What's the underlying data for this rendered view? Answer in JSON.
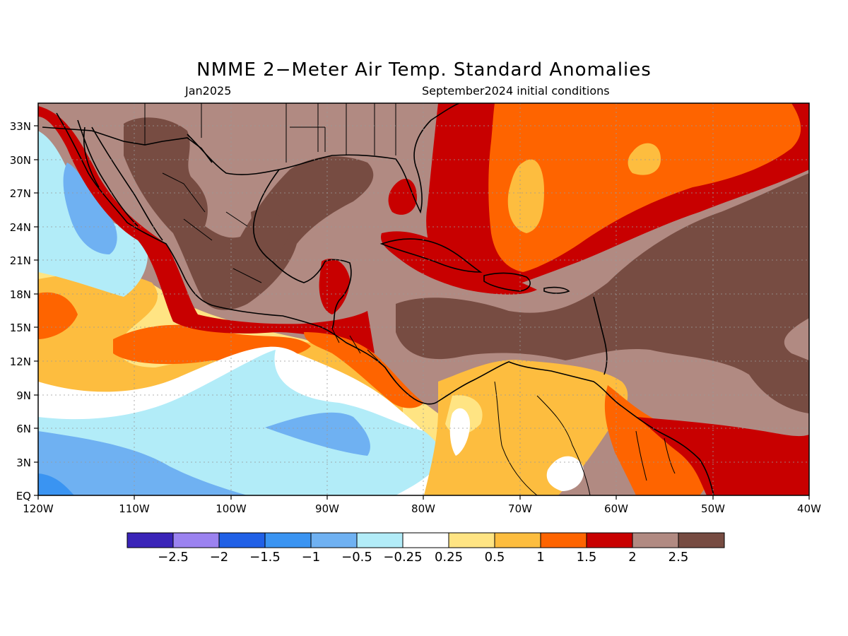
{
  "title": "NMME 2−Meter Air Temp. Standard Anomalies",
  "valid_month": "Jan2025",
  "initial_conditions": "September2024 initial conditions",
  "colors": {
    "lt_m2_5": "#3a24b8",
    "m2_5_m2": "#9b82f0",
    "m2_m1_5": "#2060e6",
    "m1_5_m1": "#3a94f2",
    "m1_m0_5": "#6fb1f2",
    "m0_5_m0_25": "#b2ecf8",
    "m0_25_0_25": "#ffffff",
    "p0_25_0_5": "#ffe483",
    "p0_5_1": "#fdbd3f",
    "p1_1_5": "#fe6400",
    "p1_5_2": "#c80000",
    "p2_2_5": "#b18a82",
    "gt_2_5": "#774c42"
  },
  "chart_data": {
    "type": "map",
    "variable": "2-Meter Air Temperature Standard Anomaly",
    "lon_range": [
      -120,
      -40
    ],
    "lat_range": [
      0,
      35
    ],
    "lon_ticks": [
      "120W",
      "110W",
      "100W",
      "90W",
      "80W",
      "70W",
      "60W",
      "50W",
      "40W"
    ],
    "lat_ticks": [
      "EQ",
      "3N",
      "6N",
      "9N",
      "12N",
      "15N",
      "18N",
      "21N",
      "24N",
      "27N",
      "30N",
      "33N"
    ],
    "colorbar": {
      "levels": [
        "−2.5",
        "−2",
        "−1.5",
        "−1",
        "−0.5",
        "−0.25",
        "0.25",
        "0.5",
        "1",
        "1.5",
        "2",
        "2.5"
      ],
      "colors": [
        "#3a24b8",
        "#9b82f0",
        "#2060e6",
        "#3a94f2",
        "#6fb1f2",
        "#b2ecf8",
        "#ffffff",
        "#ffe483",
        "#fdbd3f",
        "#fe6400",
        "#c80000",
        "#b18a82",
        "#774c42"
      ]
    },
    "regions": [
      {
        "name": "Gulf of Mexico / Mexico / southern US",
        "anomaly": "> 2.5"
      },
      {
        "name": "Caribbean Sea",
        "anomaly": "> 2.5"
      },
      {
        "name": "central tropical Atlantic",
        "anomaly": "> 2.5"
      },
      {
        "name": "subtropical western Atlantic",
        "anomaly": "1 to 2"
      },
      {
        "name": "eastern tropical Pacific near equator",
        "anomaly": "-1 to -0.25"
      },
      {
        "name": "northern South America",
        "anomaly": "0.25 to 1"
      },
      {
        "name": "Pacific coast of Mexico",
        "anomaly": "0.5 to 2"
      }
    ]
  }
}
